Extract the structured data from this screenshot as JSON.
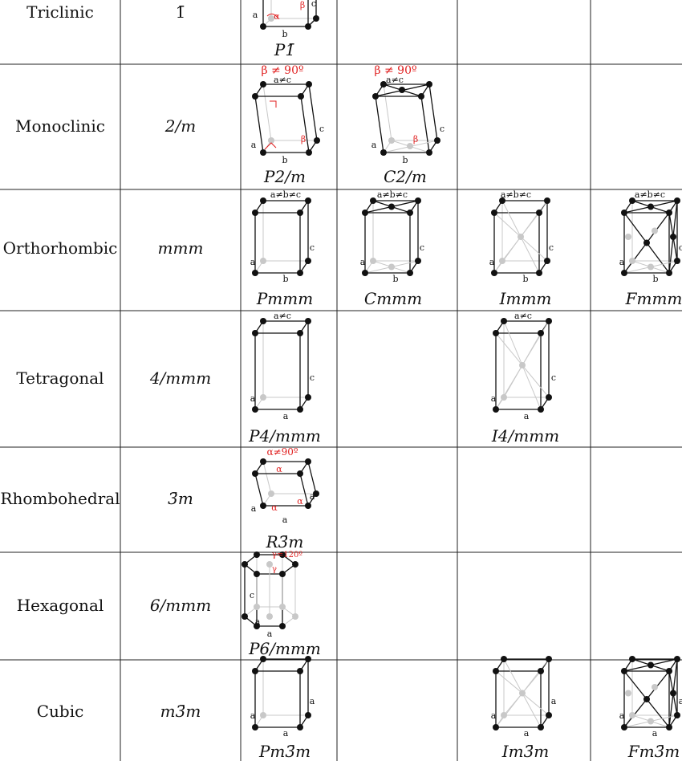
{
  "rows": [
    {
      "system": "Triclinic",
      "point_group": "1̄",
      "lattices": [
        {
          "col": 0,
          "label": "P1̄",
          "type": "tri"
        }
      ]
    },
    {
      "system": "Monoclinic",
      "point_group": "2/m",
      "lattices": [
        {
          "col": 0,
          "label": "P2/m",
          "type": "mono",
          "annot": "β ≠ 90º",
          "edge": "a≠c"
        },
        {
          "col": 1,
          "label": "C2/m",
          "type": "monoC",
          "annot": "β ≠ 90º",
          "edge": "a≠c"
        }
      ]
    },
    {
      "system": "Orthorhombic",
      "point_group": "mmm",
      "lattices": [
        {
          "col": 0,
          "label": "Pmmm",
          "type": "P",
          "edge": "a≠b≠c"
        },
        {
          "col": 1,
          "label": "Cmmm",
          "type": "C",
          "edge": "a≠b≠c"
        },
        {
          "col": 2,
          "label": "Immm",
          "type": "I",
          "edge": "a≠b≠c"
        },
        {
          "col": 3,
          "label": "Fmmm",
          "type": "F",
          "edge": "a≠b≠c"
        }
      ]
    },
    {
      "system": "Tetragonal",
      "point_group": "4/mmm",
      "lattices": [
        {
          "col": 0,
          "label": "P4/mmm",
          "type": "P",
          "edge": "a≠c"
        },
        {
          "col": 2,
          "label": "I4/mmm",
          "type": "I",
          "edge": "a≠c"
        }
      ]
    },
    {
      "system": "Rhombohedral",
      "point_group": "3̄m",
      "lattices": [
        {
          "col": 0,
          "label": "R3̄m",
          "type": "rhomb",
          "annot": "α≠90º"
        }
      ]
    },
    {
      "system": "Hexagonal",
      "point_group": "6/mmm",
      "lattices": [
        {
          "col": 0,
          "label": "P6/mmm",
          "type": "hex",
          "annot": "γ=120º"
        }
      ]
    },
    {
      "system": "Cubic",
      "point_group": "m3̄m",
      "lattices": [
        {
          "col": 0,
          "label": "Pm3̄m",
          "type": "P"
        },
        {
          "col": 2,
          "label": "Im3̄m",
          "type": "I"
        },
        {
          "col": 3,
          "label": "Fm3̄m",
          "type": "F"
        }
      ]
    }
  ],
  "colors": {
    "line": "#111111",
    "hidden": "#c8c8c8",
    "annotation": "#e01e1e"
  }
}
